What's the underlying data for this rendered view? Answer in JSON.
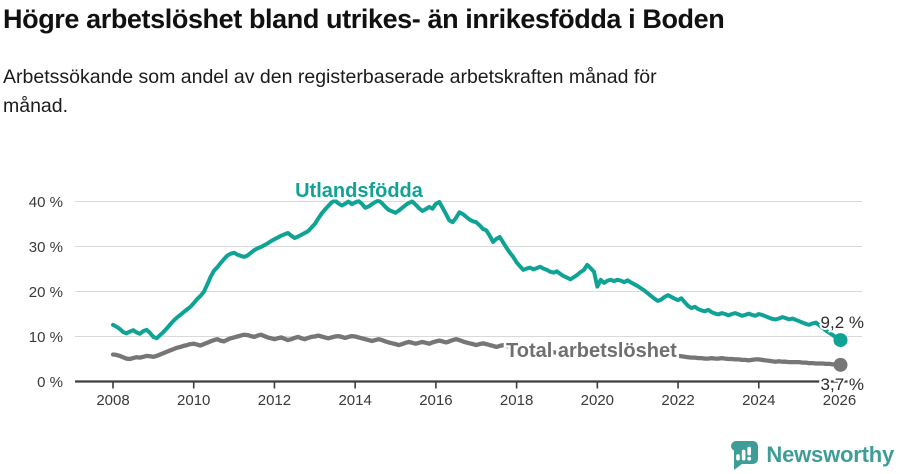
{
  "header": {
    "title": "Högre arbetslöshet bland utrikes- än inrikesfödda i Boden",
    "subtitle_line1": "Arbetssökande som andel av den registerbaserade arbetskraften månad för",
    "subtitle_line2": "månad."
  },
  "chart_data": {
    "type": "line",
    "unit": "%",
    "x_start_year": 2008,
    "x_step_months": 1,
    "x_tick_years": [
      2008,
      2010,
      2012,
      2014,
      2016,
      2018,
      2020,
      2022,
      2024,
      2026
    ],
    "x_tick_labels": [
      "2008",
      "2010",
      "2012",
      "2014",
      "2016",
      "2018",
      "2020",
      "2022",
      "2024",
      "2026"
    ],
    "y_ticks": [
      0,
      10,
      20,
      30,
      40
    ],
    "y_tick_labels": [
      "0 %",
      "10 %",
      "20 %",
      "30 %",
      "40 %"
    ],
    "ylim": [
      0,
      43
    ],
    "xlim": [
      2007.06,
      2026.56
    ],
    "grid": "horizontal",
    "legend_position": "inline-annotations",
    "series": [
      {
        "name": "Utlandsfödda",
        "color": "#0FA396",
        "end_label": "9,2 %",
        "last_value": 9.2,
        "values": [
          12.6,
          12.2,
          11.7,
          11.0,
          10.7,
          11.1,
          11.4,
          10.9,
          10.6,
          11.2,
          11.5,
          10.8,
          9.9,
          9.6,
          10.3,
          11.0,
          11.8,
          12.7,
          13.5,
          14.2,
          14.8,
          15.4,
          16.0,
          16.6,
          17.4,
          18.3,
          19.0,
          19.9,
          21.5,
          23.2,
          24.6,
          25.4,
          26.3,
          27.2,
          28.0,
          28.4,
          28.6,
          28.2,
          27.9,
          27.7,
          28.0,
          28.6,
          29.2,
          29.6,
          29.9,
          30.3,
          30.7,
          31.2,
          31.6,
          32.0,
          32.4,
          32.7,
          33.0,
          32.4,
          31.9,
          32.2,
          32.6,
          33.0,
          33.4,
          34.2,
          35.0,
          36.2,
          37.3,
          38.2,
          39.0,
          39.8,
          40.2,
          39.6,
          39.1,
          39.5,
          40.0,
          39.4,
          39.8,
          40.1,
          39.5,
          38.6,
          38.9,
          39.4,
          39.9,
          40.2,
          39.6,
          38.8,
          38.1,
          37.8,
          37.5,
          38.0,
          38.6,
          39.2,
          39.7,
          40.0,
          39.3,
          38.5,
          37.9,
          38.3,
          38.8,
          38.4,
          39.5,
          39.9,
          38.6,
          37.2,
          35.8,
          35.4,
          36.4,
          37.6,
          37.2,
          36.6,
          36.0,
          35.6,
          35.4,
          34.7,
          33.9,
          33.6,
          32.4,
          31.0,
          31.7,
          32.1,
          30.9,
          29.7,
          28.6,
          27.7,
          26.5,
          25.6,
          24.8,
          25.1,
          25.3,
          24.9,
          25.2,
          25.5,
          25.1,
          24.8,
          24.4,
          24.2,
          24.5,
          23.9,
          23.4,
          23.1,
          22.7,
          23.2,
          23.7,
          24.3,
          24.8,
          25.9,
          25.2,
          24.4,
          21.1,
          22.6,
          21.9,
          22.4,
          22.6,
          22.3,
          22.6,
          22.4,
          22.1,
          22.5,
          22.0,
          21.6,
          21.2,
          20.7,
          20.2,
          19.6,
          19.0,
          18.4,
          17.9,
          18.2,
          18.8,
          19.2,
          18.8,
          18.4,
          18.1,
          18.5,
          17.6,
          16.8,
          16.3,
          16.6,
          16.1,
          15.8,
          15.6,
          15.9,
          15.4,
          15.1,
          14.9,
          15.2,
          15.0,
          14.7,
          15.0,
          15.2,
          14.9,
          14.6,
          14.8,
          15.1,
          14.8,
          14.6,
          15.0,
          14.8,
          14.5,
          14.2,
          13.9,
          13.8,
          14.0,
          14.3,
          14.1,
          13.8,
          14.0,
          13.7,
          13.4,
          13.1,
          12.8,
          12.6,
          12.9,
          13.1,
          12.5,
          11.9,
          11.3,
          10.8,
          10.3,
          9.8,
          9.2
        ]
      },
      {
        "name": "Total arbetslöshet",
        "color": "#767676",
        "label_color": "#6F6F6F",
        "end_label": "3,7 %",
        "last_value": 3.7,
        "values": [
          6.0,
          5.9,
          5.7,
          5.4,
          5.1,
          5.0,
          5.2,
          5.4,
          5.3,
          5.5,
          5.7,
          5.6,
          5.5,
          5.7,
          6.0,
          6.3,
          6.6,
          6.9,
          7.2,
          7.5,
          7.7,
          7.9,
          8.1,
          8.3,
          8.4,
          8.2,
          8.0,
          8.3,
          8.6,
          8.9,
          9.2,
          9.4,
          9.1,
          8.9,
          9.3,
          9.6,
          9.8,
          10.0,
          10.2,
          10.4,
          10.3,
          10.1,
          9.9,
          10.2,
          10.4,
          10.1,
          9.8,
          9.6,
          9.4,
          9.6,
          9.8,
          9.5,
          9.2,
          9.4,
          9.7,
          9.9,
          9.6,
          9.4,
          9.7,
          9.9,
          10.0,
          10.2,
          10.0,
          9.8,
          9.6,
          9.8,
          10.0,
          10.1,
          9.9,
          9.7,
          9.9,
          10.1,
          10.0,
          9.8,
          9.6,
          9.4,
          9.2,
          9.0,
          9.2,
          9.4,
          9.2,
          8.9,
          8.7,
          8.5,
          8.3,
          8.1,
          8.3,
          8.6,
          8.8,
          8.6,
          8.4,
          8.6,
          8.8,
          8.6,
          8.4,
          8.7,
          8.9,
          9.1,
          8.9,
          8.7,
          8.9,
          9.2,
          9.4,
          9.2,
          8.9,
          8.7,
          8.5,
          8.3,
          8.1,
          8.3,
          8.5,
          8.3,
          8.1,
          7.9,
          7.7,
          7.9,
          8.1,
          7.9,
          7.7,
          7.5,
          7.3,
          7.1,
          7.0,
          6.9,
          6.8,
          6.7,
          6.8,
          6.9,
          6.8,
          6.7,
          6.6,
          6.5,
          6.4,
          6.3,
          6.4,
          6.5,
          6.6,
          6.5,
          6.4,
          6.5,
          6.6,
          6.7,
          6.8,
          6.9,
          7.0,
          7.2,
          7.4,
          7.6,
          7.7,
          7.6,
          7.5,
          7.4,
          7.3,
          7.2,
          7.1,
          7.0,
          6.9,
          6.8,
          6.7,
          6.6,
          6.5,
          6.4,
          6.3,
          6.2,
          6.1,
          6.0,
          5.9,
          5.8,
          5.7,
          5.6,
          5.5,
          5.4,
          5.3,
          5.3,
          5.2,
          5.2,
          5.1,
          5.1,
          5.2,
          5.1,
          5.1,
          5.2,
          5.1,
          5.0,
          5.0,
          4.9,
          4.9,
          4.8,
          4.8,
          4.7,
          4.8,
          4.9,
          4.9,
          4.8,
          4.7,
          4.6,
          4.5,
          4.4,
          4.5,
          4.4,
          4.4,
          4.3,
          4.3,
          4.3,
          4.3,
          4.2,
          4.2,
          4.1,
          4.1,
          4.0,
          4.0,
          4.0,
          3.9,
          3.9,
          3.8,
          3.8,
          3.7
        ]
      }
    ]
  },
  "footer": {
    "brand": "Newsworthy",
    "brand_color": "#3F9D97",
    "logo_icon": "bar-chart-exclamation-badge"
  }
}
